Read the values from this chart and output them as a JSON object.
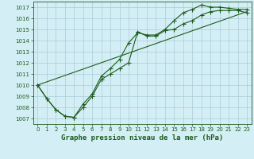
{
  "title": "Graphe pression niveau de la mer (hPa)",
  "bg_color": "#d4eef5",
  "grid_color": "#aaccd8",
  "line_color": "#1a5c1a",
  "xlim": [
    -0.5,
    23.5
  ],
  "ylim": [
    1006.5,
    1017.5
  ],
  "xticks": [
    0,
    1,
    2,
    3,
    4,
    5,
    6,
    7,
    8,
    9,
    10,
    11,
    12,
    13,
    14,
    15,
    16,
    17,
    18,
    19,
    20,
    21,
    22,
    23
  ],
  "yticks": [
    1007,
    1008,
    1009,
    1010,
    1011,
    1012,
    1013,
    1014,
    1015,
    1016,
    1017
  ],
  "series1_x": [
    0,
    1,
    2,
    3,
    4,
    5,
    6,
    7,
    8,
    9,
    10,
    11,
    12,
    13,
    14,
    15,
    16,
    17,
    18,
    19,
    20,
    21,
    22,
    23
  ],
  "series1_y": [
    1010.0,
    1008.8,
    1007.8,
    1007.2,
    1007.1,
    1008.3,
    1009.2,
    1010.8,
    1011.5,
    1012.3,
    1013.8,
    1014.7,
    1014.5,
    1014.5,
    1015.0,
    1015.8,
    1016.5,
    1016.8,
    1017.2,
    1017.0,
    1017.0,
    1016.9,
    1016.8,
    1016.8
  ],
  "series2_x": [
    0,
    1,
    2,
    3,
    4,
    5,
    6,
    7,
    8,
    9,
    10,
    11,
    12,
    13,
    14,
    15,
    16,
    17,
    18,
    19,
    20,
    21,
    22,
    23
  ],
  "series2_y": [
    1010.0,
    1008.8,
    1007.8,
    1007.2,
    1007.1,
    1008.0,
    1009.0,
    1010.5,
    1011.0,
    1011.5,
    1012.0,
    1014.8,
    1014.4,
    1014.4,
    1014.9,
    1015.0,
    1015.5,
    1015.8,
    1016.3,
    1016.6,
    1016.7,
    1016.7,
    1016.7,
    1016.5
  ],
  "series3_x": [
    0,
    23
  ],
  "series3_y": [
    1010.0,
    1016.6
  ],
  "tick_fontsize": 5,
  "label_fontsize": 6.5
}
